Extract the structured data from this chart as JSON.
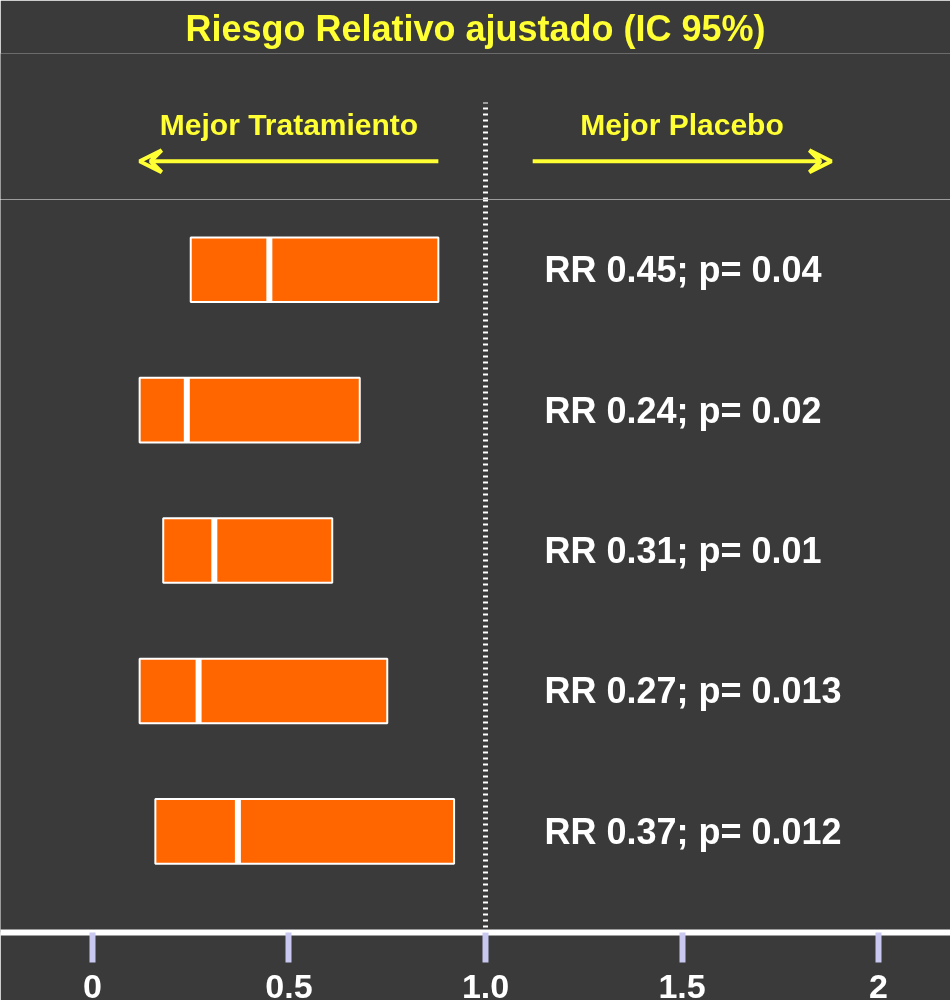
{
  "chart_data": {
    "type": "box",
    "orientation": "horizontal",
    "title": "Riesgo Relativo ajustado (IC 95%)",
    "categories": [
      null,
      null,
      null,
      null,
      null
    ],
    "color": "#ff6600",
    "boxes": [
      {
        "q1": 0.25,
        "median": 0.45,
        "q3": 0.88
      },
      {
        "q1": 0.12,
        "median": 0.24,
        "q3": 0.68
      },
      {
        "q1": 0.18,
        "median": 0.31,
        "q3": 0.61
      },
      {
        "q1": 0.12,
        "median": 0.27,
        "q3": 0.75
      },
      {
        "q1": 0.16,
        "median": 0.37,
        "q3": 0.92
      }
    ],
    "xlim": [
      -0.234,
      2.183
    ],
    "xticks": [
      0,
      0.5,
      {
        "value": 1,
        "label": "1.0"
      },
      1.5,
      2
    ],
    "ref_lines": [
      {
        "axis": "x",
        "value": 1,
        "color": "#ffffff",
        "line_style": "dotted"
      }
    ],
    "annotations": [
      "Mejor Tratamiento",
      "Mejor Placebo",
      "RR 0.45; p= 0.04",
      "RR 0.24; p= 0.02",
      "RR 0.31; p= 0.01",
      "RR 0.27; p= 0.013",
      "RR 0.37; p= 0.012"
    ],
    "tick_labels": "x",
    "grid": false
  }
}
